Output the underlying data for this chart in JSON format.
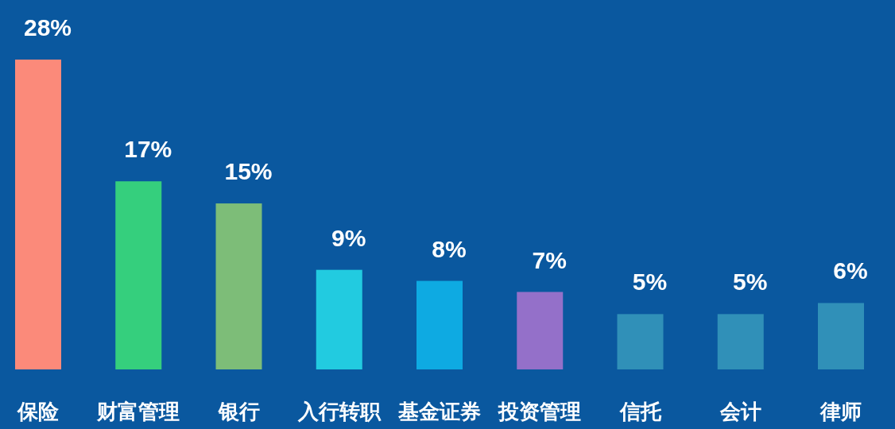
{
  "chart_data": {
    "type": "bar",
    "categories": [
      "保险",
      "财富管理",
      "银行",
      "入行转职",
      "基金证券",
      "投资管理",
      "信托",
      "会计",
      "律师"
    ],
    "values": [
      28,
      17,
      15,
      9,
      8,
      7,
      5,
      5,
      6
    ],
    "value_labels": [
      "28%",
      "17%",
      "15%",
      "9%",
      "8%",
      "7%",
      "5%",
      "5%",
      "6%"
    ],
    "colors": [
      "#fb8a7a",
      "#35cf7d",
      "#7dbd78",
      "#22cbe0",
      "#0eaae2",
      "#9470c9",
      "#3090b8",
      "#3090b8",
      "#3090b8"
    ]
  }
}
